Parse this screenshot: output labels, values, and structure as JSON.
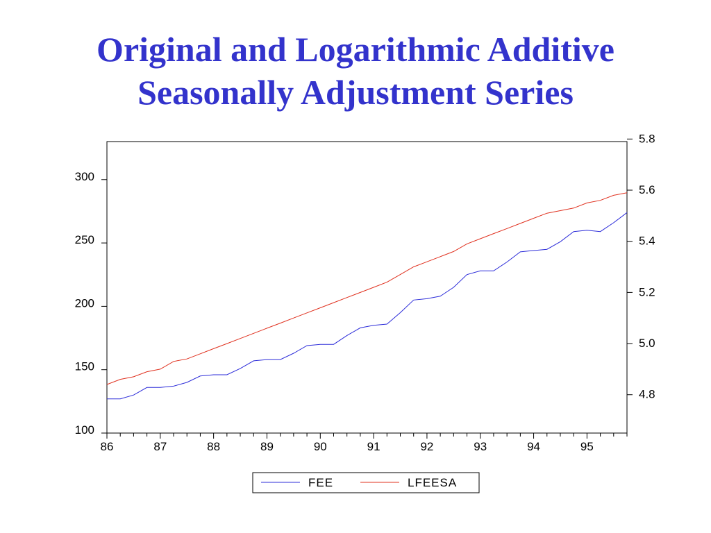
{
  "title": {
    "line1": "Original and  Logarithmic Additive",
    "line2": "Seasonally Adjustment Series"
  },
  "colors": {
    "title": "#3333cc",
    "fee": "#2b2bd9",
    "lfeesa": "#e0301e"
  },
  "chart_data": {
    "type": "line",
    "title": "",
    "xlabel": "",
    "ylabel": "",
    "x_tick_labels": [
      "86",
      "87",
      "88",
      "89",
      "90",
      "91",
      "92",
      "93",
      "94",
      "95"
    ],
    "x_range": [
      1986.0,
      1995.75
    ],
    "left_axis": {
      "ticks": [
        100,
        150,
        200,
        250,
        300
      ],
      "range": [
        100,
        330
      ]
    },
    "right_axis": {
      "ticks": [
        "4.8",
        "5.0",
        "5.2",
        "5.4",
        "5.6",
        "5.8"
      ],
      "range": [
        4.65,
        5.79
      ]
    },
    "grid": false,
    "legend_position": "bottom-center",
    "series": [
      {
        "name": "FEE",
        "axis": "left",
        "color": "#2b2bd9",
        "x": [
          1986.0,
          1986.25,
          1986.5,
          1986.75,
          1987.0,
          1987.25,
          1987.5,
          1987.75,
          1988.0,
          1988.25,
          1988.5,
          1988.75,
          1989.0,
          1989.25,
          1989.5,
          1989.75,
          1990.0,
          1990.25,
          1990.5,
          1990.75,
          1991.0,
          1991.25,
          1991.5,
          1991.75,
          1992.0,
          1992.25,
          1992.5,
          1992.75,
          1993.0,
          1993.25,
          1993.5,
          1993.75,
          1994.0,
          1994.25,
          1994.5,
          1994.75,
          1995.0,
          1995.25,
          1995.5,
          1995.75
        ],
        "values": [
          127,
          127,
          130,
          136,
          136,
          137,
          140,
          145,
          146,
          146,
          151,
          157,
          158,
          158,
          163,
          169,
          170,
          170,
          177,
          183,
          185,
          186,
          195,
          205,
          206,
          208,
          215,
          225,
          228,
          228,
          235,
          243,
          244,
          245,
          251,
          259,
          260,
          259,
          266,
          274
        ]
      },
      {
        "name": "LFEESA",
        "axis": "right",
        "color": "#e0301e",
        "x": [
          1986.0,
          1986.25,
          1986.5,
          1986.75,
          1987.0,
          1987.25,
          1987.5,
          1987.75,
          1988.0,
          1988.25,
          1988.5,
          1988.75,
          1989.0,
          1989.25,
          1989.5,
          1989.75,
          1990.0,
          1990.25,
          1990.5,
          1990.75,
          1991.0,
          1991.25,
          1991.5,
          1991.75,
          1992.0,
          1992.25,
          1992.5,
          1992.75,
          1993.0,
          1993.25,
          1993.5,
          1993.75,
          1994.0,
          1994.25,
          1994.5,
          1994.75,
          1995.0,
          1995.25,
          1995.5,
          1995.75
        ],
        "values": [
          4.84,
          4.86,
          4.87,
          4.89,
          4.9,
          4.93,
          4.94,
          4.96,
          4.98,
          5.0,
          5.02,
          5.04,
          5.06,
          5.08,
          5.1,
          5.12,
          5.14,
          5.16,
          5.18,
          5.2,
          5.22,
          5.24,
          5.27,
          5.3,
          5.32,
          5.34,
          5.36,
          5.39,
          5.41,
          5.43,
          5.45,
          5.47,
          5.49,
          5.51,
          5.52,
          5.53,
          5.55,
          5.56,
          5.58,
          5.59
        ]
      }
    ]
  }
}
